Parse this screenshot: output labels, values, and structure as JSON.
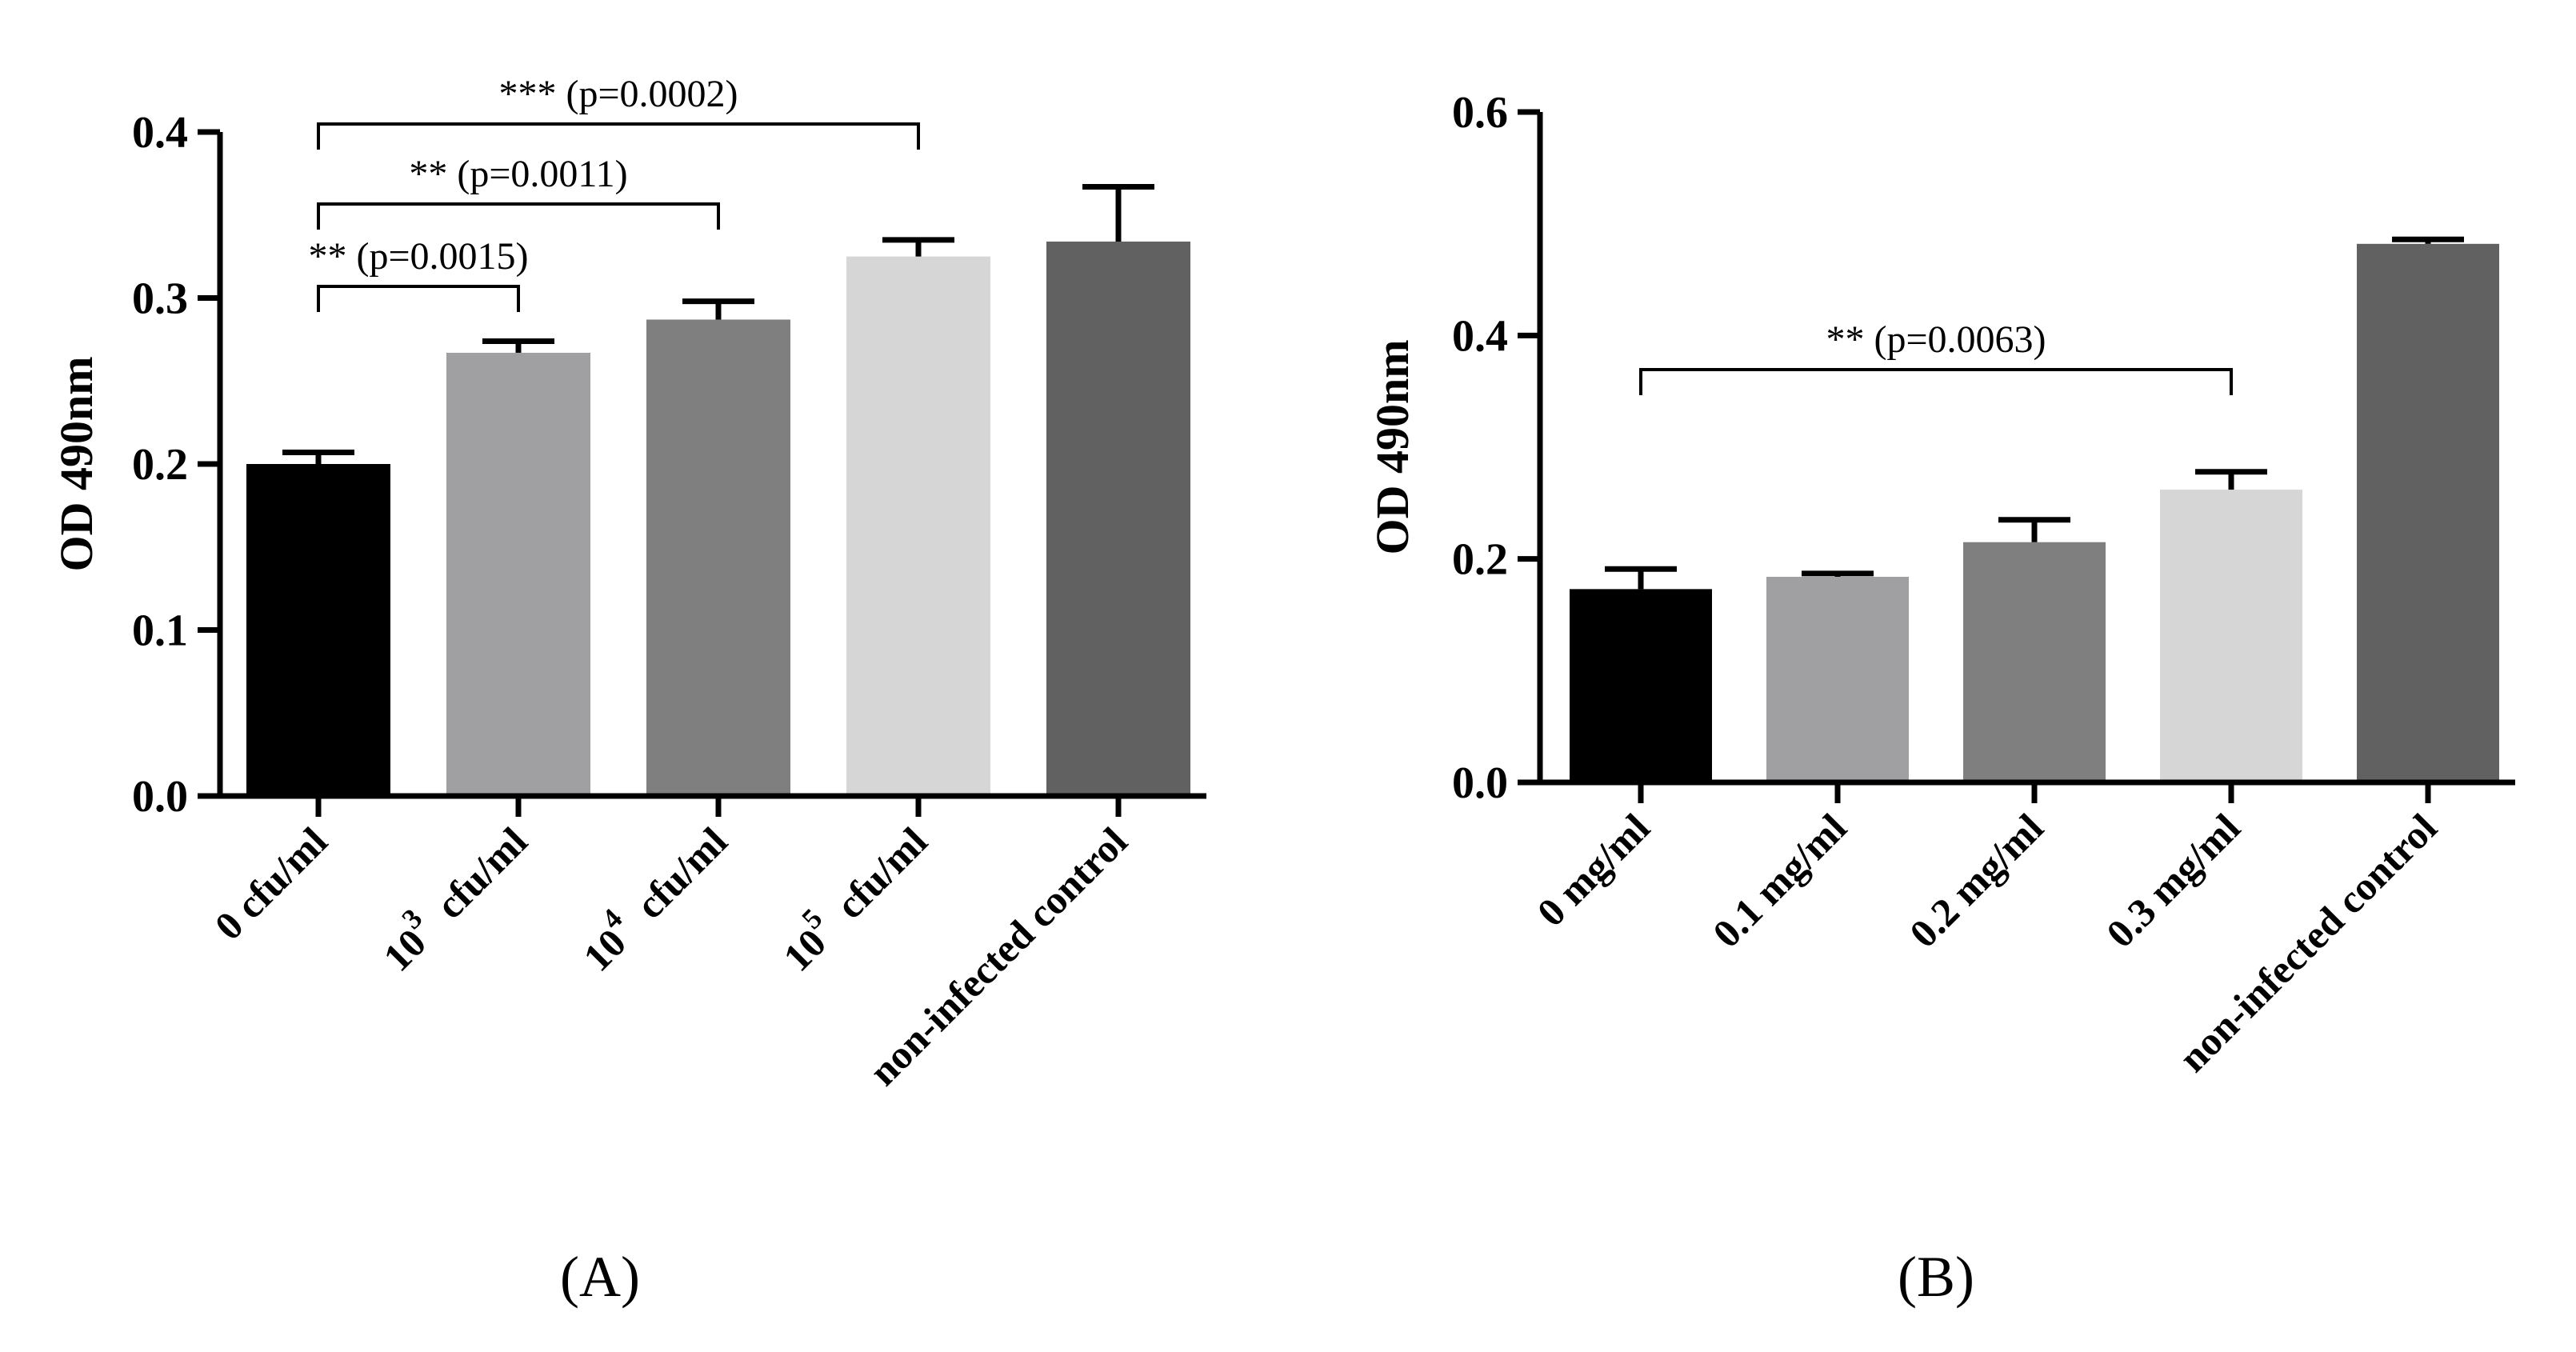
{
  "chart_data": [
    {
      "type": "bar",
      "panel": "A",
      "panel_label": "(A)",
      "ylabel": "OD 490nm",
      "ylim": [
        0,
        0.4
      ],
      "yticks": [
        0.0,
        0.1,
        0.2,
        0.3,
        0.4
      ],
      "ytick_labels": [
        "0.0",
        "0.1",
        "0.2",
        "0.3",
        "0.4"
      ],
      "categories": [
        {
          "label": "0 cfu/ml",
          "base": "",
          "exp": ""
        },
        {
          "label": "10^3 cfu/ml",
          "base": "10",
          "exp": "3",
          "suffix": "cfu/ml"
        },
        {
          "label": "10^4 cfu/ml",
          "base": "10",
          "exp": "4",
          "suffix": "cfu/ml"
        },
        {
          "label": "10^5 cfu/ml",
          "base": "10",
          "exp": "5",
          "suffix": "cfu/ml"
        },
        {
          "label": "non-infected control",
          "base": "",
          "exp": ""
        }
      ],
      "values": [
        0.2,
        0.267,
        0.287,
        0.325,
        0.334
      ],
      "errors": [
        0.007,
        0.007,
        0.011,
        0.01,
        0.033
      ],
      "colors": [
        "#000000",
        "#a0a0a3",
        "#7f7f7f",
        "#d6d6d6",
        "#616161"
      ],
      "significance": [
        {
          "from": 0,
          "to": 1,
          "label": "** (p=0.0015)"
        },
        {
          "from": 0,
          "to": 2,
          "label": "** (p=0.0011)"
        },
        {
          "from": 0,
          "to": 3,
          "label": "*** (p=0.0002)"
        }
      ]
    },
    {
      "type": "bar",
      "panel": "B",
      "panel_label": "(B)",
      "ylabel": "OD 490nm",
      "ylim": [
        0,
        0.6
      ],
      "yticks": [
        0.0,
        0.2,
        0.4,
        0.6
      ],
      "ytick_labels": [
        "0.0",
        "0.2",
        "0.4",
        "0.6"
      ],
      "categories": [
        {
          "label": "0 mg/ml"
        },
        {
          "label": "0.1 mg/ml"
        },
        {
          "label": "0.2 mg/ml"
        },
        {
          "label": "0.3 mg/ml"
        },
        {
          "label": "non-infected control"
        }
      ],
      "values": [
        0.173,
        0.184,
        0.215,
        0.262,
        0.482
      ],
      "errors": [
        0.018,
        0.003,
        0.02,
        0.016,
        0.004
      ],
      "colors": [
        "#000000",
        "#a0a0a3",
        "#7f7f7f",
        "#d6d6d6",
        "#616161"
      ],
      "significance": [
        {
          "from": 0,
          "to": 3,
          "label": "** (p=0.0063)"
        }
      ]
    }
  ]
}
